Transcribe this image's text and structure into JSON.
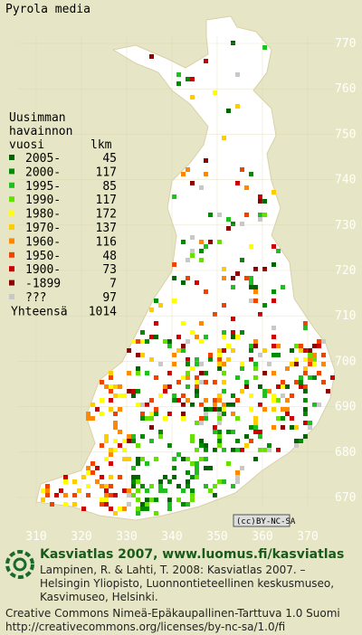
{
  "title": "Pyrola media",
  "legend": {
    "heading": [
      "Uusimman",
      "havainnon",
      "vuosi"
    ],
    "count_heading": "lkm",
    "rows": [
      {
        "label": "2005-",
        "count": "45",
        "color": "#006400"
      },
      {
        "label": "2000-",
        "count": "117",
        "color": "#008c00"
      },
      {
        "label": "1995-",
        "count": "85",
        "color": "#1fbf1f"
      },
      {
        "label": "1990-",
        "count": "117",
        "color": "#66e000"
      },
      {
        "label": "1980-",
        "count": "172",
        "color": "#ffff00"
      },
      {
        "label": "1970-",
        "count": "137",
        "color": "#ffcc00"
      },
      {
        "label": "1960-",
        "count": "116",
        "color": "#ff8800"
      },
      {
        "label": "1950-",
        "count": "48",
        "color": "#ee4400"
      },
      {
        "label": "1900-",
        "count": "73",
        "color": "#cc0000"
      },
      {
        "label": "-1899",
        "count": "7",
        "color": "#880000"
      },
      {
        "label": "???",
        "count": "97",
        "color": "#c8c8c8"
      }
    ],
    "total_label": "Yhteensä",
    "total": "1014"
  },
  "axis": {
    "x_labels": [
      "310",
      "320",
      "330",
      "340",
      "350",
      "360",
      "370"
    ],
    "y_labels": [
      "770",
      "760",
      "750",
      "740",
      "730",
      "720",
      "710",
      "700",
      "690",
      "680",
      "670"
    ]
  },
  "license_badge": [
    "(cc)",
    "BY-NC-SA"
  ],
  "footer": {
    "brand": "Kasviatlas 2007, www.luomus.fi/kasviatlas",
    "citation": [
      "Lampinen, R. & Lahti, T. 2008: Kasviatlas 2007. –",
      "Helsingin Yliopisto, Luonnontieteellinen keskusmuseo,",
      "Kasvimuseo, Helsinki."
    ],
    "license": [
      "Creative Commons Nimeä-Epäkaupallinen-Tarttuva 1.0 Suomi",
      "http://creativecommons.org/licenses/by-nc-sa/1.0/fi"
    ]
  }
}
